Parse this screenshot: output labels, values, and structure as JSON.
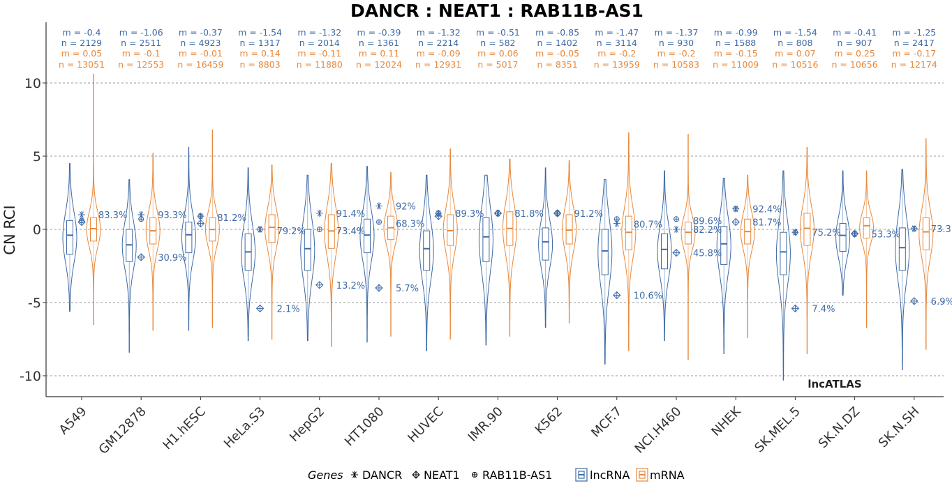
{
  "chart_data": {
    "type": "violin-box",
    "title": "DANCR : NEAT1 : RAB11B-AS1",
    "ylabel": "CN RCI",
    "xlabel": "",
    "ylim": [
      -11,
      14
    ],
    "yticks": [
      -10,
      -5,
      0,
      5,
      10
    ],
    "ytick_labels": [
      "-10",
      "-5",
      "0",
      "5",
      "10"
    ],
    "grid": "horizontal-dashed",
    "watermark": "lncATLAS",
    "colors": {
      "lncRNA": "#3e6aa6",
      "mRNA": "#e8883a"
    },
    "categories": [
      "A549",
      "GM12878",
      "H1.hESC",
      "HeLa.S3",
      "HepG2",
      "HT1080",
      "HUVEC",
      "IMR.90",
      "K562",
      "MCF.7",
      "NCI.H460",
      "NHEK",
      "SK.MEL.5",
      "SK.N.DZ",
      "SK.N.SH"
    ],
    "series": [
      {
        "name": "lncRNA",
        "m_labels": [
          "m = -0.4",
          "m = -1.06",
          "m = -0.37",
          "m = -1.54",
          "m = -1.32",
          "m = -0.39",
          "m = -1.32",
          "m = -0.51",
          "m = -0.85",
          "m = -1.47",
          "m = -1.37",
          "m = -0.99",
          "m = -1.54",
          "m = -0.41",
          "m = -1.25"
        ],
        "n_labels": [
          "n = 2129",
          "n = 2511",
          "n = 4923",
          "n = 1317",
          "n = 2014",
          "n = 1361",
          "n = 2214",
          "n = 582",
          "n = 1402",
          "n = 3114",
          "n = 930",
          "n = 1588",
          "n = 808",
          "n = 907",
          "n = 2417"
        ],
        "median": [
          -0.4,
          -1.06,
          -0.37,
          -1.54,
          -1.32,
          -0.39,
          -1.32,
          -0.51,
          -0.85,
          -1.47,
          -1.37,
          -0.99,
          -1.54,
          -0.41,
          -1.25
        ],
        "q1": [
          -1.7,
          -2.2,
          -1.6,
          -2.8,
          -2.8,
          -1.6,
          -2.8,
          -2.2,
          -2.1,
          -3.1,
          -2.7,
          -2.4,
          -3.1,
          -1.5,
          -2.8
        ],
        "q3": [
          0.6,
          0.0,
          0.5,
          -0.3,
          0.0,
          0.7,
          -0.1,
          0.8,
          0.1,
          0.0,
          -0.3,
          0.2,
          -0.2,
          0.4,
          0.1
        ],
        "min": [
          -5.6,
          -8.4,
          -6.9,
          -7.6,
          -7.6,
          -7.7,
          -8.3,
          -7.9,
          -6.7,
          -9.2,
          -7.6,
          -8.5,
          -10.3,
          -4.5,
          -9.6
        ],
        "max": [
          4.5,
          3.4,
          5.6,
          4.2,
          3.7,
          4.3,
          3.7,
          3.7,
          4.2,
          3.4,
          4.0,
          3.5,
          4.0,
          4.0,
          4.1
        ]
      },
      {
        "name": "mRNA",
        "m_labels": [
          "m = 0.05",
          "m = -0.1",
          "m = -0.01",
          "m = 0.14",
          "m = -0.11",
          "m = 0.11",
          "m = -0.09",
          "m = 0.06",
          "m = -0.05",
          "m = -0.2",
          "m = -0.2",
          "m = -0.15",
          "m = 0.07",
          "m = 0.25",
          "m = -0.17"
        ],
        "n_labels": [
          "n = 13051",
          "n = 12553",
          "n = 16459",
          "n = 8803",
          "n = 11880",
          "n = 12024",
          "n = 12931",
          "n = 5017",
          "n = 8351",
          "n = 13959",
          "n = 10583",
          "n = 11009",
          "n = 10516",
          "n = 10656",
          "n = 12174"
        ],
        "median": [
          0.05,
          -0.1,
          -0.01,
          0.14,
          -0.11,
          0.11,
          -0.09,
          0.06,
          -0.05,
          -0.2,
          -0.2,
          -0.15,
          0.07,
          0.25,
          -0.17
        ],
        "q1": [
          -0.8,
          -1.0,
          -0.8,
          -0.9,
          -1.3,
          -0.7,
          -1.1,
          -1.1,
          -1.0,
          -1.4,
          -1.0,
          -1.0,
          -1.1,
          -0.6,
          -1.4
        ],
        "q3": [
          0.8,
          0.8,
          0.8,
          1.0,
          1.0,
          0.9,
          1.0,
          1.2,
          1.0,
          0.9,
          0.5,
          0.7,
          1.1,
          0.8,
          0.8
        ],
        "min": [
          -6.5,
          -6.9,
          -6.7,
          -7.5,
          -8.0,
          -7.3,
          -7.5,
          -7.3,
          -6.4,
          -8.3,
          -8.9,
          -7.4,
          -8.5,
          -6.7,
          -8.2
        ],
        "max": [
          10.6,
          5.2,
          6.8,
          4.4,
          4.5,
          3.9,
          5.5,
          4.8,
          4.7,
          6.6,
          6.5,
          3.7,
          5.6,
          4.0,
          6.2
        ]
      }
    ],
    "genes": {
      "DANCR": [
        1.0,
        1.0,
        0.9,
        0.0,
        1.1,
        1.6,
        1.1,
        1.1,
        1.1,
        0.4,
        0.0,
        1.4,
        -0.2,
        -0.3,
        0.05
      ],
      "NEAT1": [
        0.5,
        -1.9,
        0.4,
        -5.4,
        -3.8,
        -4.0,
        0.9,
        1.1,
        1.1,
        -4.5,
        -1.6,
        0.5,
        -5.4,
        -0.3,
        -4.9
      ],
      "RAB11B-AS1": [
        0.6,
        0.7,
        0.9,
        0.0,
        0.0,
        0.5,
        1.1,
        1.1,
        1.1,
        0.7,
        0.7,
        1.4,
        -0.2,
        -0.3,
        0.05
      ]
    },
    "percent_labels": [
      [
        {
          "text": "83.3%",
          "y": 1.0
        }
      ],
      [
        {
          "text": "93.3%",
          "y": 1.0
        },
        {
          "text": "30.9%",
          "y": -1.9
        }
      ],
      [
        {
          "text": "81.2%",
          "y": 0.8
        }
      ],
      [
        {
          "text": "79.2%",
          "y": -0.1
        },
        {
          "text": "2.1%",
          "y": -5.4
        }
      ],
      [
        {
          "text": "91.4%",
          "y": 1.1
        },
        {
          "text": "73.4%",
          "y": -0.1
        },
        {
          "text": "13.2%",
          "y": -3.8
        }
      ],
      [
        {
          "text": "92%",
          "y": 1.6
        },
        {
          "text": "68.3%",
          "y": 0.4
        },
        {
          "text": "5.7%",
          "y": -4.0
        }
      ],
      [
        {
          "text": "89.3%",
          "y": 1.1
        }
      ],
      [
        {
          "text": "81.8%",
          "y": 1.1
        }
      ],
      [
        {
          "text": "91.2%",
          "y": 1.1
        }
      ],
      [
        {
          "text": "80.7%",
          "y": 0.35
        },
        {
          "text": "10.6%",
          "y": -4.5
        }
      ],
      [
        {
          "text": "89.6%",
          "y": 0.6
        },
        {
          "text": "82.2%",
          "y": 0.0
        },
        {
          "text": "45.8%",
          "y": -1.6
        }
      ],
      [
        {
          "text": "92.4%",
          "y": 1.4
        },
        {
          "text": "81.7%",
          "y": 0.5
        }
      ],
      [
        {
          "text": "75.2%",
          "y": -0.2
        },
        {
          "text": "7.4%",
          "y": -5.4
        }
      ],
      [
        {
          "text": "53.3%",
          "y": -0.3
        }
      ],
      [
        {
          "text": "73.3",
          "y": 0.05
        },
        {
          "text": "6.9%",
          "y": -4.9
        }
      ]
    ],
    "legend": {
      "title": "Genes",
      "gene_entries": [
        {
          "label": "DANCR",
          "marker": "asterisk-icon"
        },
        {
          "label": "NEAT1",
          "marker": "crossed-diamond-icon"
        },
        {
          "label": "RAB11B-AS1",
          "marker": "circle-plus-icon"
        }
      ],
      "type_entries": [
        {
          "label": "lncRNA",
          "color": "#3e6aa6"
        },
        {
          "label": "mRNA",
          "color": "#e8883a"
        }
      ],
      "placement": "bottom"
    }
  }
}
